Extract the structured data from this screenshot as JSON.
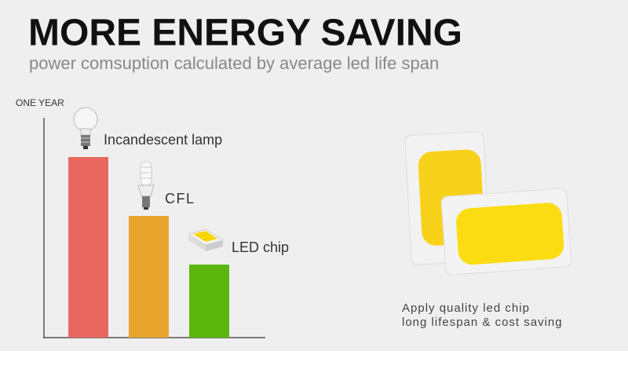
{
  "chart_data": {
    "type": "bar",
    "title": "MORE ENERGY SAVING",
    "subtitle": "power comsuption calculated by average led life span",
    "y_label": "ONE YEAR",
    "categories": [
      "Incandescent lamp",
      "CFL",
      "LED chip"
    ],
    "values": [
      230,
      155,
      93
    ],
    "colors": [
      "#e8675f",
      "#e8a52e",
      "#5bb70d"
    ],
    "ylim": [
      0,
      280
    ],
    "annotations": [
      "Apply quality led chip",
      "long lifespan & cost saving"
    ]
  }
}
